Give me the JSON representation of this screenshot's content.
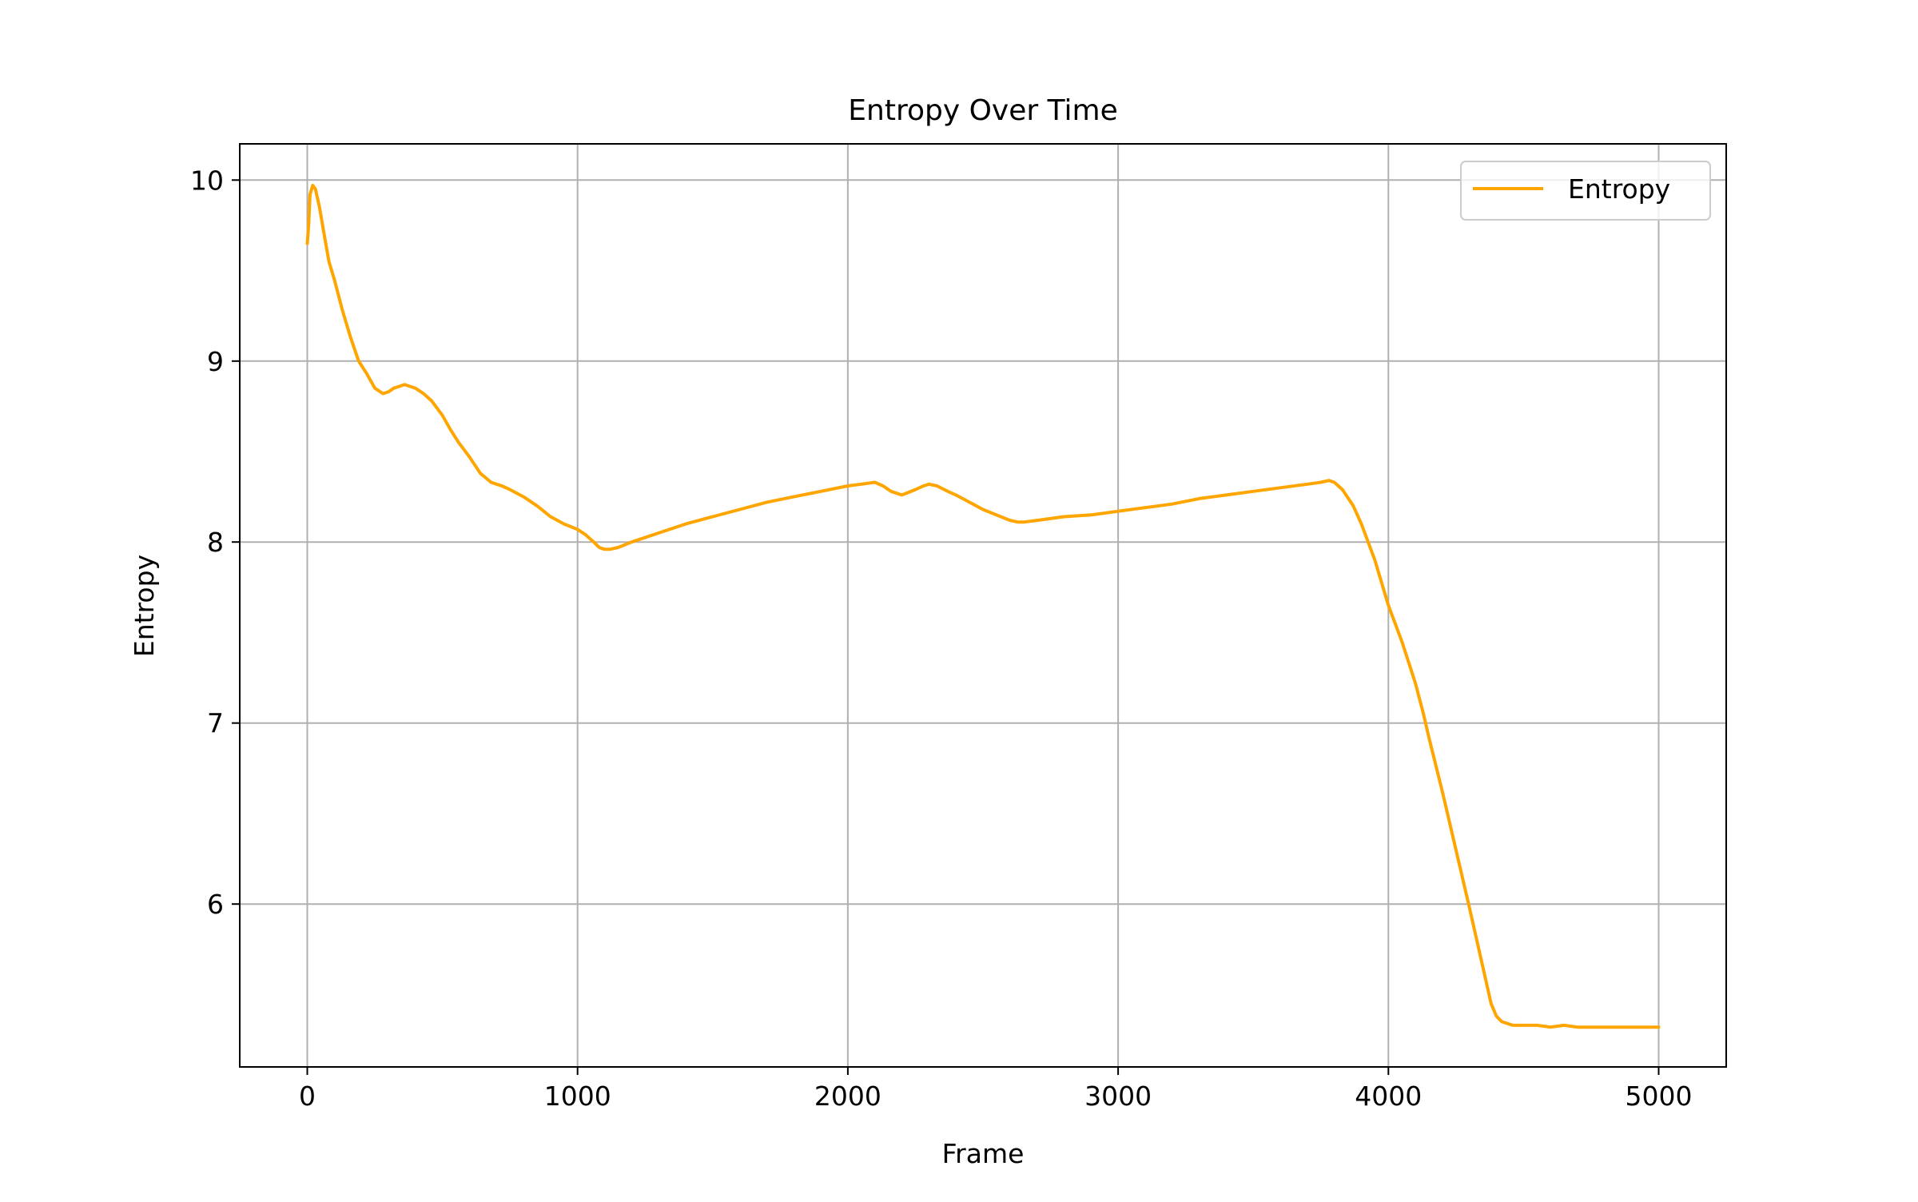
{
  "chart_data": {
    "type": "line",
    "title": "Entropy Over Time",
    "xlabel": "Frame",
    "ylabel": "Entropy",
    "xlim": [
      -250,
      5250
    ],
    "ylim": [
      5.1,
      10.2
    ],
    "xticks": [
      0,
      1000,
      2000,
      3000,
      4000,
      5000
    ],
    "xtick_labels": [
      "0",
      "1000",
      "2000",
      "3000",
      "4000",
      "5000"
    ],
    "yticks": [
      6,
      7,
      8,
      9,
      10
    ],
    "ytick_labels": [
      "6",
      "7",
      "8",
      "9",
      "10"
    ],
    "grid": true,
    "legend_position": "top-right",
    "series": [
      {
        "name": "Entropy",
        "color": "#FFA500",
        "x": [
          0,
          5,
          10,
          20,
          30,
          45,
          60,
          80,
          100,
          130,
          160,
          190,
          220,
          250,
          280,
          300,
          320,
          340,
          360,
          380,
          400,
          430,
          460,
          500,
          530,
          560,
          600,
          640,
          680,
          700,
          720,
          750,
          800,
          850,
          900,
          950,
          1000,
          1030,
          1060,
          1080,
          1100,
          1120,
          1150,
          1200,
          1300,
          1400,
          1500,
          1600,
          1700,
          1800,
          1900,
          2000,
          2050,
          2100,
          2130,
          2160,
          2200,
          2250,
          2280,
          2300,
          2330,
          2370,
          2400,
          2450,
          2500,
          2550,
          2600,
          2630,
          2650,
          2700,
          2800,
          2900,
          3000,
          3100,
          3200,
          3300,
          3400,
          3500,
          3600,
          3700,
          3750,
          3780,
          3800,
          3830,
          3870,
          3900,
          3950,
          4000,
          4050,
          4100,
          4130,
          4150,
          4200,
          4250,
          4300,
          4350,
          4380,
          4400,
          4420,
          4440,
          4460,
          4500,
          4550,
          4600,
          4650,
          4700,
          4750,
          4800,
          4850,
          4900,
          4950,
          5000
        ],
        "y": [
          9.65,
          9.75,
          9.92,
          9.97,
          9.95,
          9.85,
          9.72,
          9.55,
          9.45,
          9.28,
          9.13,
          9.0,
          8.93,
          8.85,
          8.82,
          8.83,
          8.85,
          8.86,
          8.87,
          8.86,
          8.85,
          8.82,
          8.78,
          8.7,
          8.62,
          8.55,
          8.47,
          8.38,
          8.33,
          8.32,
          8.31,
          8.29,
          8.25,
          8.2,
          8.14,
          8.1,
          8.07,
          8.04,
          8.0,
          7.97,
          7.96,
          7.96,
          7.97,
          8.0,
          8.05,
          8.1,
          8.14,
          8.18,
          8.22,
          8.25,
          8.28,
          8.31,
          8.32,
          8.33,
          8.31,
          8.28,
          8.26,
          8.29,
          8.31,
          8.32,
          8.31,
          8.28,
          8.26,
          8.22,
          8.18,
          8.15,
          8.12,
          8.11,
          8.11,
          8.12,
          8.14,
          8.15,
          8.17,
          8.19,
          8.21,
          8.24,
          8.26,
          8.28,
          8.3,
          8.32,
          8.33,
          8.34,
          8.33,
          8.29,
          8.2,
          8.1,
          7.9,
          7.65,
          7.45,
          7.22,
          7.05,
          6.92,
          6.62,
          6.3,
          5.98,
          5.65,
          5.45,
          5.38,
          5.35,
          5.34,
          5.33,
          5.33,
          5.33,
          5.32,
          5.33,
          5.32,
          5.32,
          5.32,
          5.32,
          5.32,
          5.32,
          5.32
        ]
      }
    ]
  }
}
